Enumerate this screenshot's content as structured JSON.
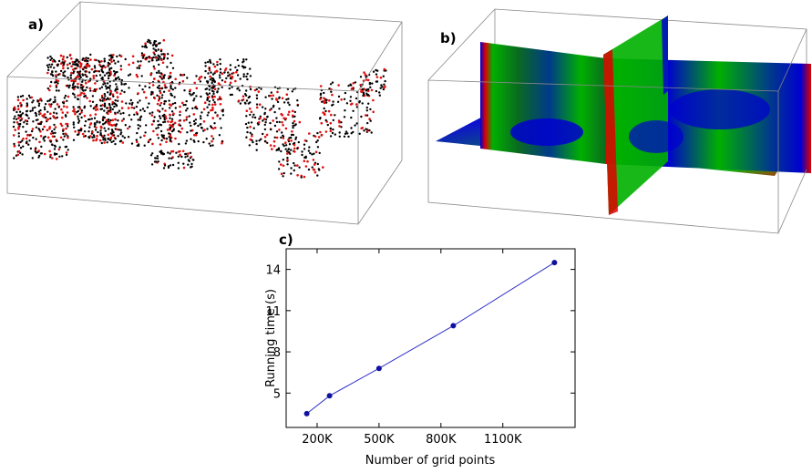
{
  "panels": {
    "a_label": "a)",
    "b_label": "b)",
    "c_label": "c)"
  },
  "colors": {
    "points_primary": "#000000",
    "points_secondary": "#e01010",
    "contour_high": "#e00000",
    "contour_mid": "#00b000",
    "contour_low": "#0000d0",
    "line": "#3030c8",
    "marker": "#1010a0"
  },
  "chart_data": [
    {
      "type": "scatter",
      "dimensions": 3,
      "series": [
        {
          "color": "#000000"
        },
        {
          "color": "#e01010"
        }
      ]
    },
    {
      "type": "heatmap",
      "dimensions": 3,
      "colormap": [
        "#0000d0",
        "#00b000",
        "#e00000"
      ]
    },
    {
      "type": "line",
      "x": [
        150000,
        260000,
        500000,
        860000,
        1350000
      ],
      "values": [
        3.5,
        4.8,
        6.8,
        9.9,
        14.5
      ],
      "xlabel": "Number of grid points",
      "ylabel": "Running time (s)",
      "xticks": [
        "200K",
        "500K",
        "800K",
        "1100K"
      ],
      "xtick_values": [
        200000,
        500000,
        800000,
        1100000
      ],
      "yticks": [
        "5",
        "8",
        "11",
        "14"
      ],
      "ytick_values": [
        5,
        8,
        11,
        14
      ],
      "xlim": [
        50000,
        1450000
      ],
      "ylim": [
        2.5,
        15.5
      ],
      "grid": false,
      "markers": true
    }
  ]
}
